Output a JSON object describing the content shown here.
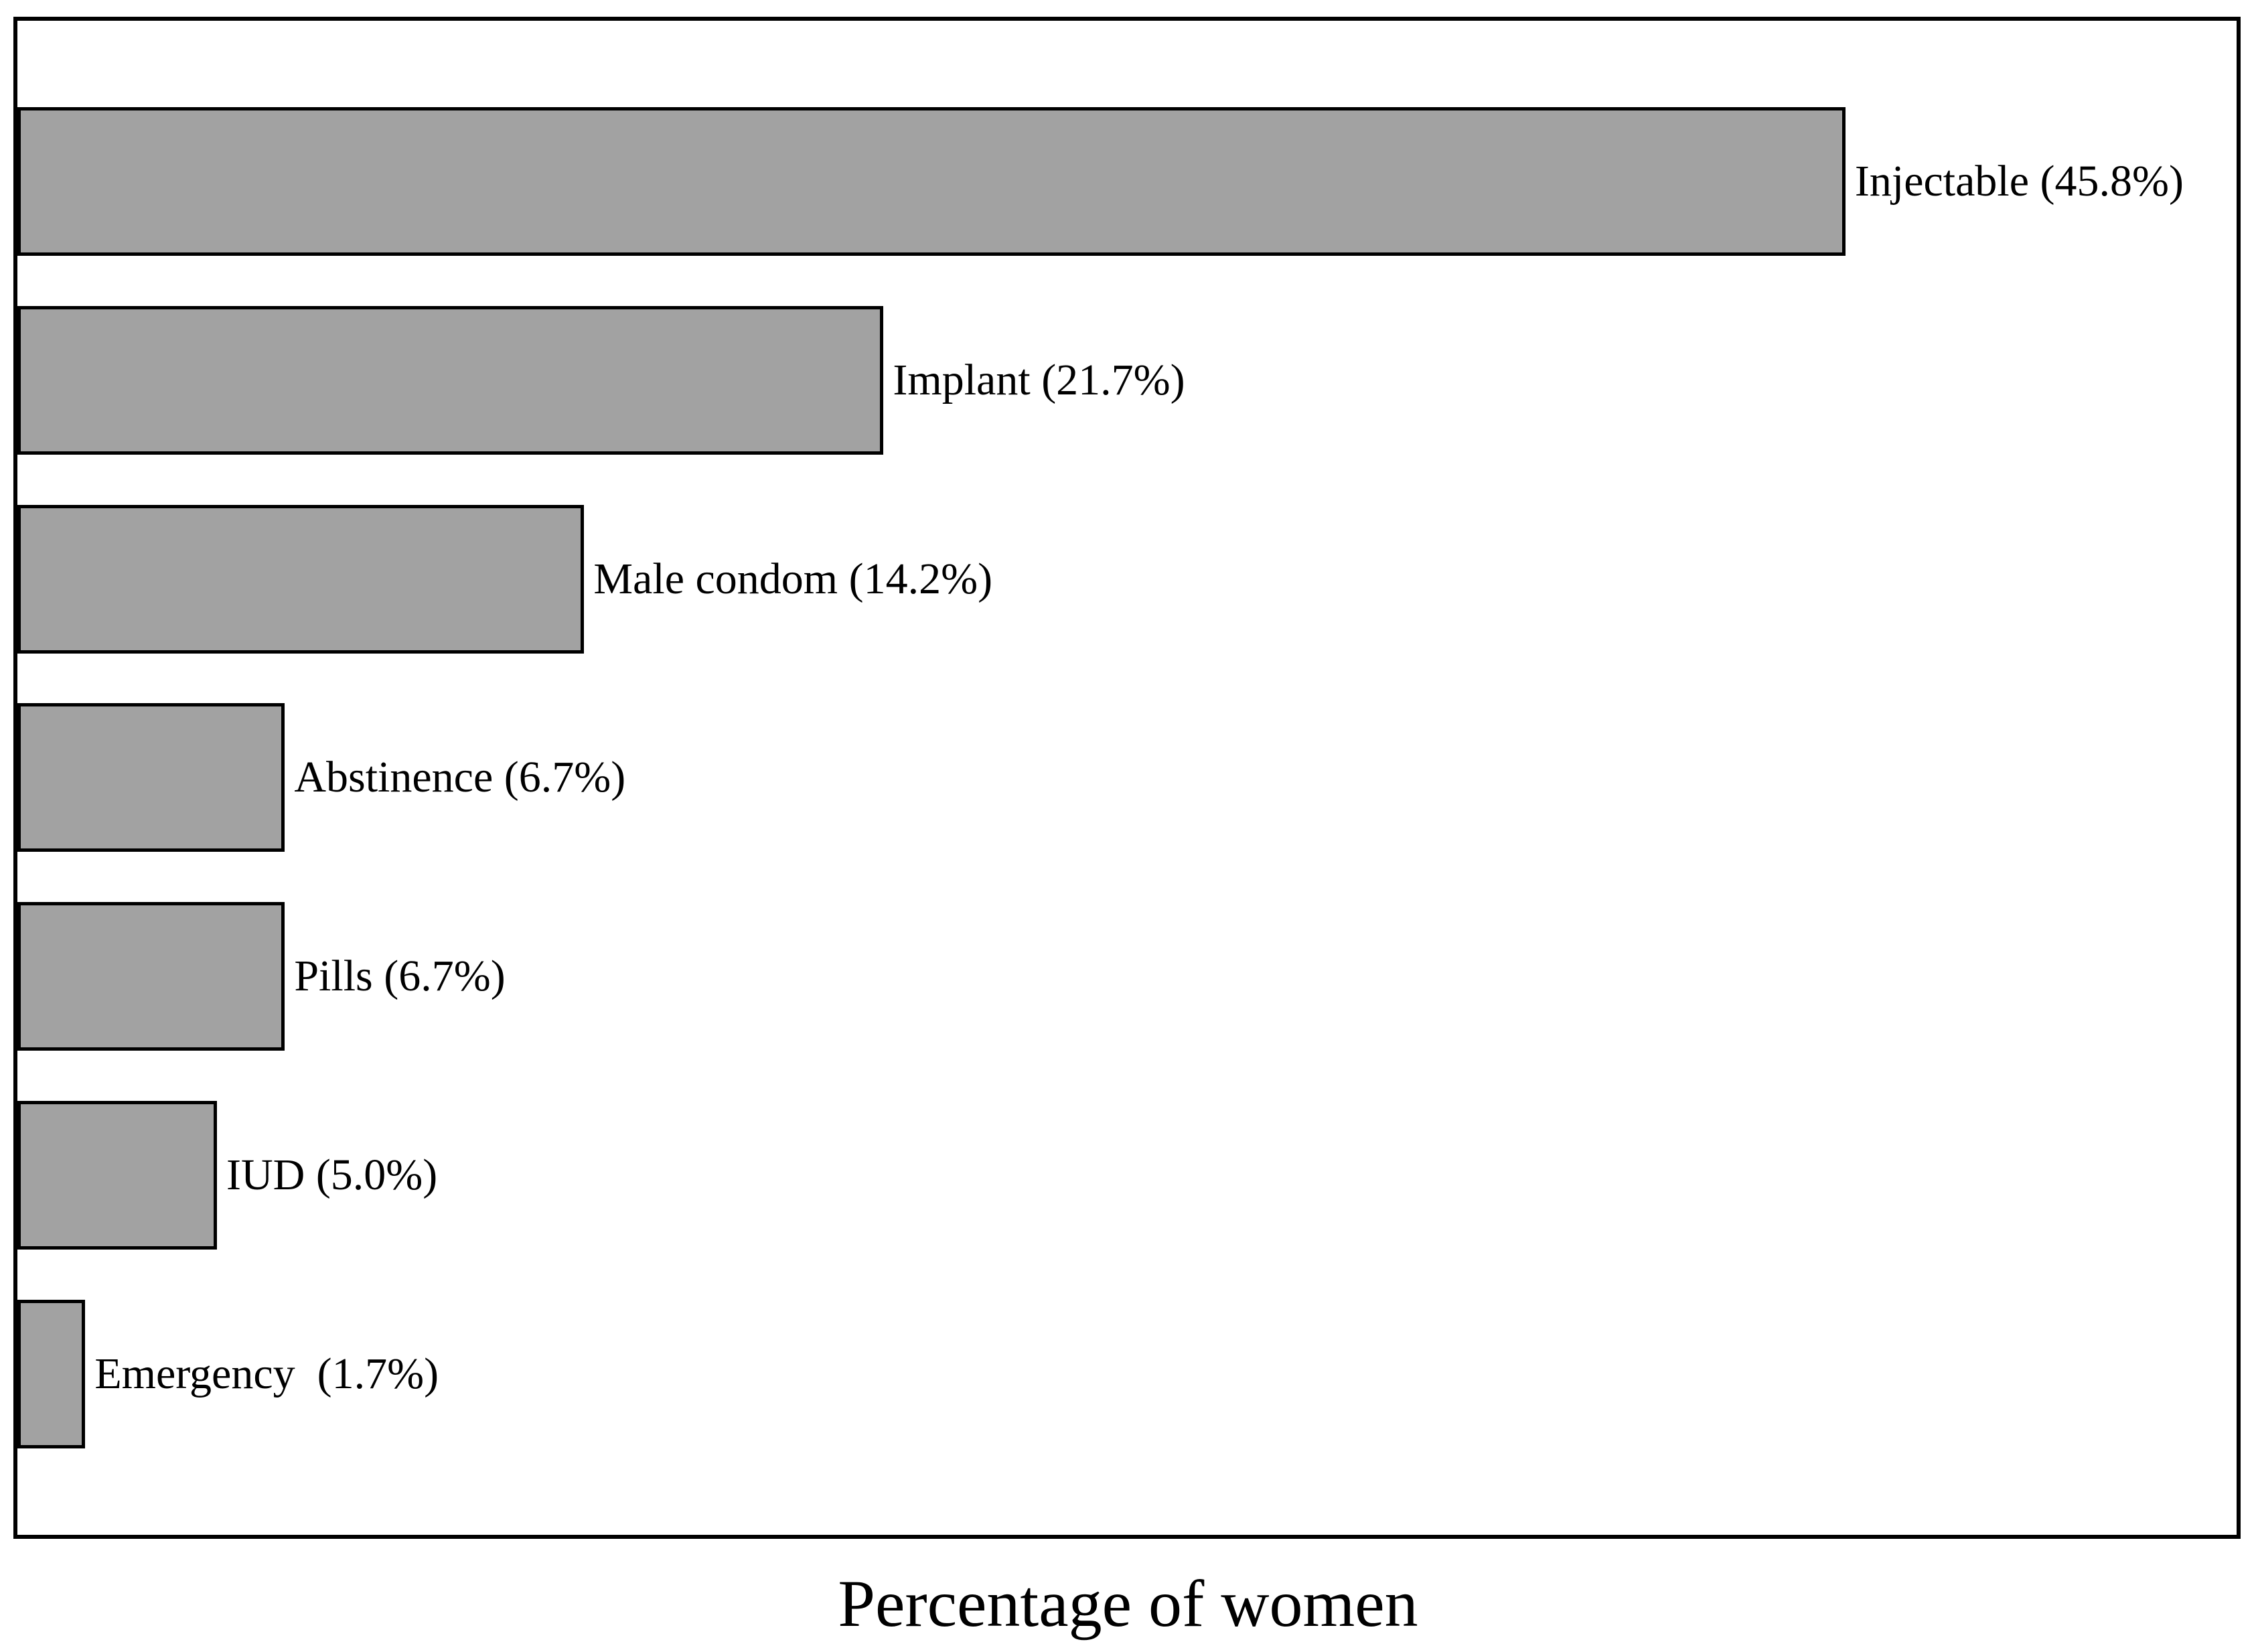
{
  "chart_data": {
    "type": "bar",
    "orientation": "horizontal",
    "title": "",
    "xlabel": "Percentage of women",
    "ylabel": "",
    "categories": [
      "Injectable",
      "Implant",
      "Male condom",
      "Abstinence",
      "Pills",
      "IUD",
      "Emergency"
    ],
    "values": [
      45.8,
      21.7,
      14.2,
      6.7,
      6.7,
      5.0,
      1.7
    ],
    "bar_labels": [
      "Injectable (45.8%)",
      "Implant (21.7%)",
      "Male condom (14.2%)",
      "Abstinence (6.7%)",
      "Pills (6.7%)",
      "IUD (5.0%)",
      "Emergency  (1.7%)"
    ],
    "xlim": [
      0,
      55.6
    ],
    "grid": false,
    "legend": false,
    "bar_color": "#a2a2a2",
    "bar_border_color": "#000000",
    "plot_border_color": "#000000",
    "text_color": "#000000",
    "background_color": "#ffffff"
  }
}
